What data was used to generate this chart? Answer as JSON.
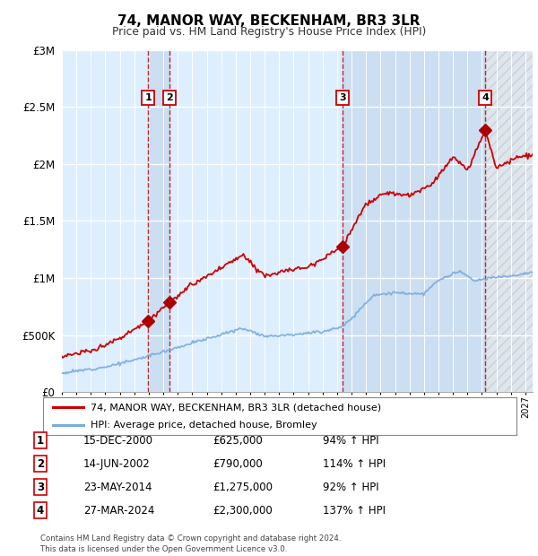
{
  "title": "74, MANOR WAY, BECKENHAM, BR3 3LR",
  "subtitle": "Price paid vs. HM Land Registry's House Price Index (HPI)",
  "xlim": [
    1995.0,
    2027.5
  ],
  "ylim": [
    0,
    3000000
  ],
  "yticks": [
    0,
    500000,
    1000000,
    1500000,
    2000000,
    2500000,
    3000000
  ],
  "ytick_labels": [
    "£0",
    "£500K",
    "£1M",
    "£1.5M",
    "£2M",
    "£2.5M",
    "£3M"
  ],
  "sale_dates": [
    2000.96,
    2002.45,
    2014.39,
    2024.24
  ],
  "sale_prices": [
    625000,
    790000,
    1275000,
    2300000
  ],
  "sale_labels": [
    "1",
    "2",
    "3",
    "4"
  ],
  "vline_color": "#cc0000",
  "hpi_line_color": "#7aabdd",
  "price_line_color": "#cc0000",
  "marker_color": "#aa0000",
  "legend_entries": [
    "74, MANOR WAY, BECKENHAM, BR3 3LR (detached house)",
    "HPI: Average price, detached house, Bromley"
  ],
  "table_data": [
    [
      "1",
      "15-DEC-2000",
      "£625,000",
      "94% ↑ HPI"
    ],
    [
      "2",
      "14-JUN-2002",
      "£790,000",
      "114% ↑ HPI"
    ],
    [
      "3",
      "23-MAY-2014",
      "£1,275,000",
      "92% ↑ HPI"
    ],
    [
      "4",
      "27-MAR-2024",
      "£2,300,000",
      "137% ↑ HPI"
    ]
  ],
  "footer": "Contains HM Land Registry data © Crown copyright and database right 2024.\nThis data is licensed under the Open Government Licence v3.0.",
  "plot_bg_color": "#ddeeff",
  "span_color": "#c8dcf0",
  "hatch_color": "#cccccc"
}
